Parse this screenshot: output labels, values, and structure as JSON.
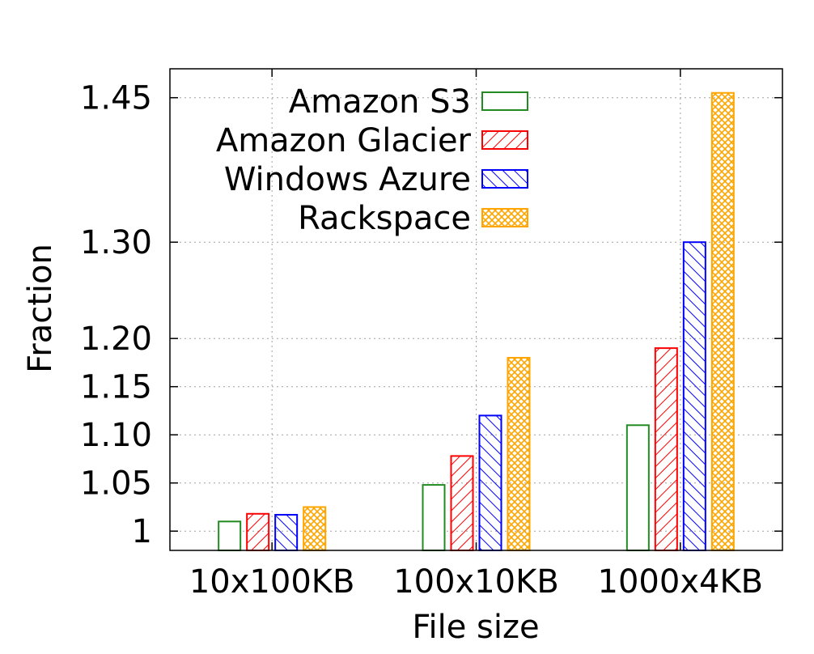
{
  "chart_data": {
    "type": "bar",
    "title": "",
    "xlabel": "File size",
    "ylabel": "Fraction",
    "categories": [
      "10x100KB",
      "100x10KB",
      "1000x4KB"
    ],
    "series": [
      {
        "name": "Amazon S3",
        "values": [
          1.01,
          1.048,
          1.11
        ],
        "color": "#228b22",
        "pattern": "none"
      },
      {
        "name": "Amazon Glacier",
        "values": [
          1.018,
          1.078,
          1.19
        ],
        "color": "#ff0000",
        "pattern": "diagonal-up"
      },
      {
        "name": "Windows Azure",
        "values": [
          1.017,
          1.12,
          1.3
        ],
        "color": "#0000ff",
        "pattern": "diagonal-down"
      },
      {
        "name": "Rackspace",
        "values": [
          1.025,
          1.18,
          1.455
        ],
        "color": "#ffa500",
        "pattern": "crosshatch"
      }
    ],
    "yticks": [
      {
        "value": 1.0,
        "label": "1"
      },
      {
        "value": 1.05,
        "label": "1.05"
      },
      {
        "value": 1.1,
        "label": "1.10"
      },
      {
        "value": 1.15,
        "label": "1.15"
      },
      {
        "value": 1.2,
        "label": "1.20"
      },
      {
        "value": 1.3,
        "label": "1.30"
      },
      {
        "value": 1.45,
        "label": "1.45"
      }
    ],
    "ylim": [
      0.98,
      1.48
    ],
    "grid": true,
    "legend_position": "top-left"
  }
}
